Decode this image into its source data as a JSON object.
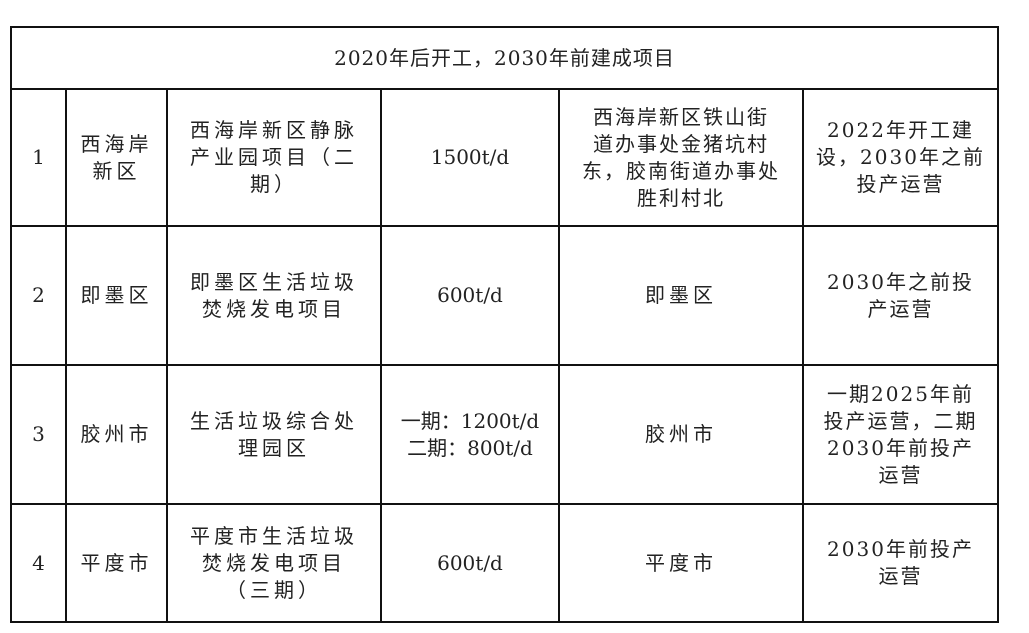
{
  "table": {
    "section_title": "2020年后开工，2030年前建成项目",
    "rows": [
      {
        "no": "1",
        "district": [
          "西海岸",
          "新区"
        ],
        "project": [
          "西海岸新区静脉",
          "产业园项目（二",
          "期）"
        ],
        "capacity": [
          "1500t/d"
        ],
        "location": [
          "西海岸新区铁山街",
          "道办事处金猪坑村",
          "东，胶南街道办事处",
          "胜利村北"
        ],
        "schedule": [
          "2022年开工建",
          "设，2030年之前",
          "投产运营"
        ]
      },
      {
        "no": "2",
        "district": [
          "即墨区"
        ],
        "project": [
          "即墨区生活垃圾",
          "焚烧发电项目"
        ],
        "capacity": [
          "600t/d"
        ],
        "location": [
          "即墨区"
        ],
        "schedule": [
          "2030年之前投",
          "产运营"
        ]
      },
      {
        "no": "3",
        "district": [
          "胶州市"
        ],
        "project": [
          "生活垃圾综合处",
          "理园区"
        ],
        "capacity": [
          "一期：1200t/d",
          "二期：800t/d"
        ],
        "location": [
          "胶州市"
        ],
        "schedule": [
          "一期2025年前",
          "投产运营，二期",
          "2030年前投产",
          "运营"
        ]
      },
      {
        "no": "4",
        "district": [
          "平度市"
        ],
        "project": [
          "平度市生活垃圾",
          "焚烧发电项目",
          "（三期）"
        ],
        "capacity": [
          "600t/d"
        ],
        "location": [
          "平度市"
        ],
        "schedule": [
          "2030年前投产",
          "运营"
        ]
      }
    ]
  }
}
